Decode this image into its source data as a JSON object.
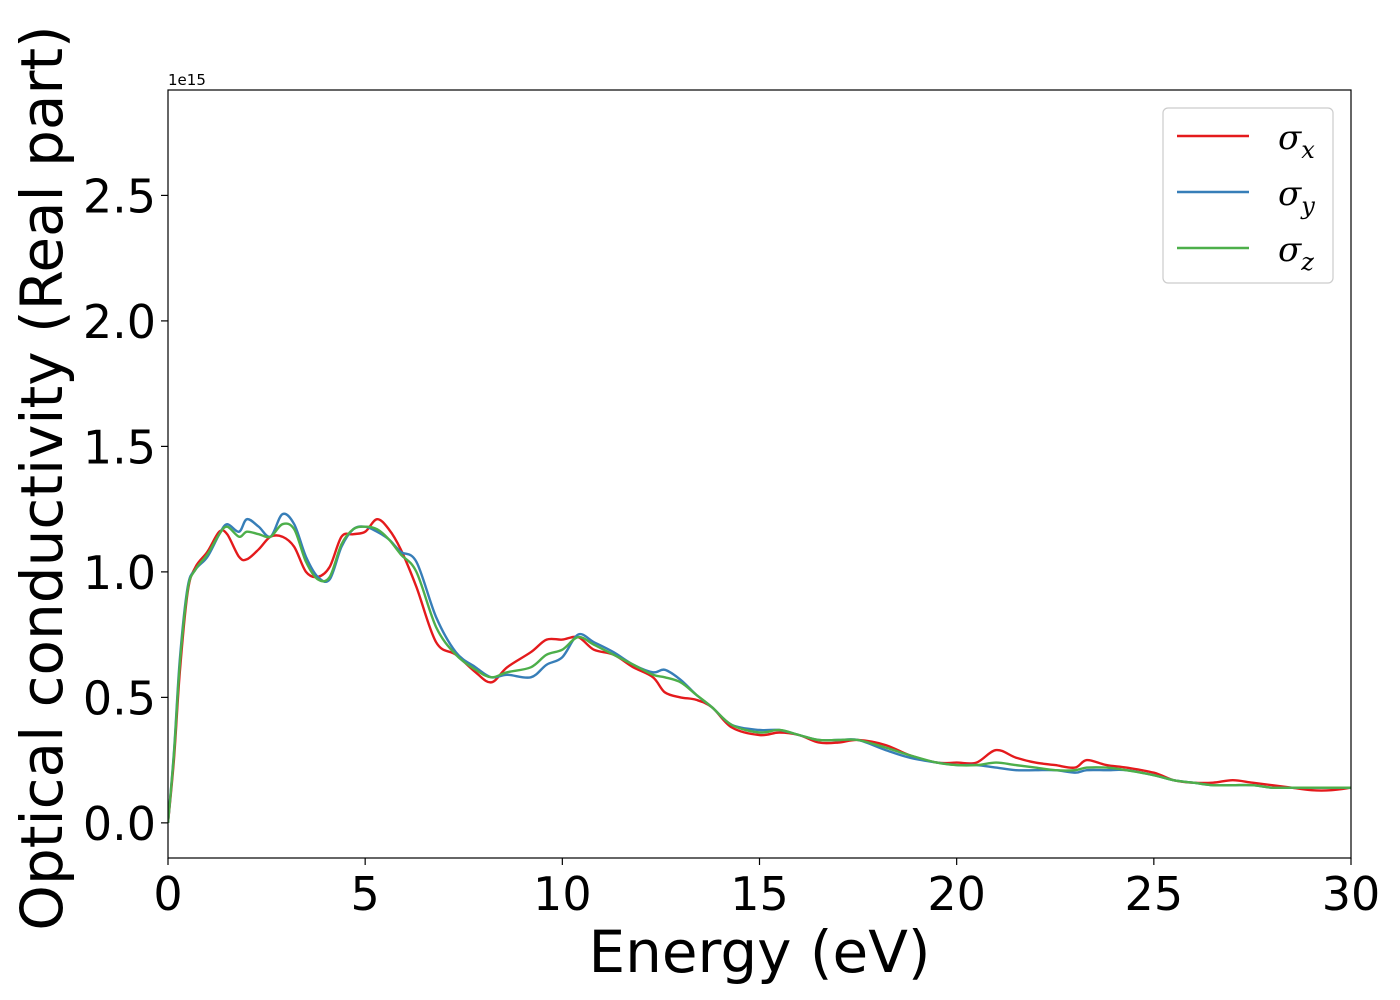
{
  "chart_data": {
    "type": "line",
    "xlabel": "Energy (eV)",
    "ylabel": "Optical conductivity (Real part)",
    "offset_text": "1e15",
    "xlim": [
      0,
      30
    ],
    "ylim": [
      -0.14,
      2.92
    ],
    "x_ticks": [
      0,
      5,
      10,
      15,
      20,
      25,
      30
    ],
    "x_tick_labels": [
      "0",
      "5",
      "10",
      "15",
      "20",
      "25",
      "30"
    ],
    "y_ticks": [
      0.0,
      0.5,
      1.0,
      1.5,
      2.0,
      2.5
    ],
    "y_tick_labels": [
      "0.0",
      "0.5",
      "1.0",
      "1.5",
      "2.0",
      "2.5"
    ],
    "y_scale_factor": 1000000000000000.0,
    "grid": false,
    "legend_position": "top-right",
    "series": [
      {
        "name": "σx",
        "legend_symbol": "σ",
        "legend_subscript": "x",
        "color": "#e41a1c",
        "points": [
          [
            0,
            0.0
          ],
          [
            0.15,
            0.25
          ],
          [
            0.3,
            0.6
          ],
          [
            0.5,
            0.92
          ],
          [
            0.7,
            1.02
          ],
          [
            1.0,
            1.08
          ],
          [
            1.3,
            1.16
          ],
          [
            1.5,
            1.15
          ],
          [
            1.8,
            1.06
          ],
          [
            2.0,
            1.05
          ],
          [
            2.3,
            1.09
          ],
          [
            2.6,
            1.14
          ],
          [
            2.9,
            1.14
          ],
          [
            3.2,
            1.1
          ],
          [
            3.5,
            1.0
          ],
          [
            3.8,
            0.98
          ],
          [
            4.1,
            1.02
          ],
          [
            4.4,
            1.14
          ],
          [
            4.7,
            1.15
          ],
          [
            5.0,
            1.16
          ],
          [
            5.3,
            1.21
          ],
          [
            5.6,
            1.17
          ],
          [
            5.9,
            1.09
          ],
          [
            6.3,
            0.94
          ],
          [
            6.8,
            0.72
          ],
          [
            7.3,
            0.67
          ],
          [
            7.8,
            0.6
          ],
          [
            8.2,
            0.56
          ],
          [
            8.6,
            0.62
          ],
          [
            9.2,
            0.68
          ],
          [
            9.6,
            0.73
          ],
          [
            10.0,
            0.73
          ],
          [
            10.4,
            0.74
          ],
          [
            10.8,
            0.69
          ],
          [
            11.3,
            0.67
          ],
          [
            11.8,
            0.62
          ],
          [
            12.3,
            0.58
          ],
          [
            12.6,
            0.52
          ],
          [
            13.0,
            0.5
          ],
          [
            13.4,
            0.49
          ],
          [
            13.8,
            0.46
          ],
          [
            14.3,
            0.38
          ],
          [
            15.0,
            0.35
          ],
          [
            15.5,
            0.36
          ],
          [
            16.0,
            0.35
          ],
          [
            16.5,
            0.32
          ],
          [
            17.0,
            0.32
          ],
          [
            17.5,
            0.33
          ],
          [
            18.2,
            0.31
          ],
          [
            18.8,
            0.27
          ],
          [
            19.5,
            0.24
          ],
          [
            20.0,
            0.24
          ],
          [
            20.5,
            0.24
          ],
          [
            21.0,
            0.29
          ],
          [
            21.5,
            0.26
          ],
          [
            22.0,
            0.24
          ],
          [
            22.5,
            0.23
          ],
          [
            23.0,
            0.22
          ],
          [
            23.3,
            0.25
          ],
          [
            23.8,
            0.23
          ],
          [
            24.3,
            0.22
          ],
          [
            25.0,
            0.2
          ],
          [
            25.5,
            0.17
          ],
          [
            26.0,
            0.16
          ],
          [
            26.5,
            0.16
          ],
          [
            27.0,
            0.17
          ],
          [
            27.5,
            0.16
          ],
          [
            28.0,
            0.15
          ],
          [
            28.5,
            0.14
          ],
          [
            29.0,
            0.13
          ],
          [
            29.5,
            0.13
          ],
          [
            30.0,
            0.14
          ]
        ]
      },
      {
        "name": "σy",
        "legend_symbol": "σ",
        "legend_subscript": "y",
        "color": "#377eb8",
        "points": [
          [
            0,
            0.0
          ],
          [
            0.15,
            0.28
          ],
          [
            0.3,
            0.65
          ],
          [
            0.5,
            0.94
          ],
          [
            0.7,
            1.01
          ],
          [
            1.0,
            1.06
          ],
          [
            1.3,
            1.15
          ],
          [
            1.5,
            1.19
          ],
          [
            1.8,
            1.16
          ],
          [
            2.0,
            1.21
          ],
          [
            2.3,
            1.18
          ],
          [
            2.6,
            1.14
          ],
          [
            2.9,
            1.23
          ],
          [
            3.2,
            1.19
          ],
          [
            3.5,
            1.06
          ],
          [
            3.8,
            0.98
          ],
          [
            4.1,
            0.97
          ],
          [
            4.4,
            1.1
          ],
          [
            4.7,
            1.17
          ],
          [
            5.0,
            1.18
          ],
          [
            5.3,
            1.16
          ],
          [
            5.6,
            1.13
          ],
          [
            5.9,
            1.08
          ],
          [
            6.3,
            1.04
          ],
          [
            6.8,
            0.82
          ],
          [
            7.3,
            0.68
          ],
          [
            7.8,
            0.62
          ],
          [
            8.2,
            0.58
          ],
          [
            8.6,
            0.59
          ],
          [
            9.2,
            0.58
          ],
          [
            9.6,
            0.63
          ],
          [
            10.0,
            0.66
          ],
          [
            10.4,
            0.75
          ],
          [
            10.8,
            0.72
          ],
          [
            11.3,
            0.68
          ],
          [
            11.8,
            0.63
          ],
          [
            12.3,
            0.6
          ],
          [
            12.6,
            0.61
          ],
          [
            13.0,
            0.57
          ],
          [
            13.4,
            0.51
          ],
          [
            13.8,
            0.46
          ],
          [
            14.3,
            0.39
          ],
          [
            15.0,
            0.37
          ],
          [
            15.5,
            0.37
          ],
          [
            16.0,
            0.35
          ],
          [
            16.5,
            0.33
          ],
          [
            17.0,
            0.33
          ],
          [
            17.5,
            0.33
          ],
          [
            18.2,
            0.29
          ],
          [
            18.8,
            0.26
          ],
          [
            19.5,
            0.24
          ],
          [
            20.0,
            0.23
          ],
          [
            20.5,
            0.23
          ],
          [
            21.0,
            0.22
          ],
          [
            21.5,
            0.21
          ],
          [
            22.0,
            0.21
          ],
          [
            22.5,
            0.21
          ],
          [
            23.0,
            0.2
          ],
          [
            23.3,
            0.21
          ],
          [
            23.8,
            0.21
          ],
          [
            24.3,
            0.21
          ],
          [
            25.0,
            0.19
          ],
          [
            25.5,
            0.17
          ],
          [
            26.0,
            0.16
          ],
          [
            26.5,
            0.15
          ],
          [
            27.0,
            0.15
          ],
          [
            27.5,
            0.15
          ],
          [
            28.0,
            0.14
          ],
          [
            28.5,
            0.14
          ],
          [
            29.0,
            0.14
          ],
          [
            29.5,
            0.14
          ],
          [
            30.0,
            0.14
          ]
        ]
      },
      {
        "name": "σz",
        "legend_symbol": "σ",
        "legend_subscript": "z",
        "color": "#4daf4a",
        "points": [
          [
            0,
            0.0
          ],
          [
            0.15,
            0.27
          ],
          [
            0.3,
            0.63
          ],
          [
            0.5,
            0.93
          ],
          [
            0.7,
            1.01
          ],
          [
            1.0,
            1.07
          ],
          [
            1.3,
            1.15
          ],
          [
            1.5,
            1.18
          ],
          [
            1.8,
            1.14
          ],
          [
            2.0,
            1.16
          ],
          [
            2.3,
            1.15
          ],
          [
            2.6,
            1.14
          ],
          [
            2.9,
            1.19
          ],
          [
            3.2,
            1.17
          ],
          [
            3.5,
            1.04
          ],
          [
            3.8,
            0.97
          ],
          [
            4.1,
            0.98
          ],
          [
            4.4,
            1.11
          ],
          [
            4.7,
            1.17
          ],
          [
            5.0,
            1.18
          ],
          [
            5.3,
            1.17
          ],
          [
            5.6,
            1.13
          ],
          [
            5.9,
            1.07
          ],
          [
            6.3,
            1.0
          ],
          [
            6.8,
            0.78
          ],
          [
            7.3,
            0.67
          ],
          [
            7.8,
            0.61
          ],
          [
            8.2,
            0.58
          ],
          [
            8.6,
            0.6
          ],
          [
            9.2,
            0.62
          ],
          [
            9.6,
            0.67
          ],
          [
            10.0,
            0.69
          ],
          [
            10.4,
            0.74
          ],
          [
            10.8,
            0.71
          ],
          [
            11.3,
            0.67
          ],
          [
            11.8,
            0.63
          ],
          [
            12.3,
            0.59
          ],
          [
            12.6,
            0.58
          ],
          [
            13.0,
            0.56
          ],
          [
            13.4,
            0.51
          ],
          [
            13.8,
            0.46
          ],
          [
            14.3,
            0.39
          ],
          [
            15.0,
            0.36
          ],
          [
            15.5,
            0.37
          ],
          [
            16.0,
            0.35
          ],
          [
            16.5,
            0.33
          ],
          [
            17.0,
            0.33
          ],
          [
            17.5,
            0.33
          ],
          [
            18.2,
            0.3
          ],
          [
            18.8,
            0.27
          ],
          [
            19.5,
            0.24
          ],
          [
            20.0,
            0.23
          ],
          [
            20.5,
            0.23
          ],
          [
            21.0,
            0.24
          ],
          [
            21.5,
            0.23
          ],
          [
            22.0,
            0.22
          ],
          [
            22.5,
            0.21
          ],
          [
            23.0,
            0.21
          ],
          [
            23.3,
            0.22
          ],
          [
            23.8,
            0.22
          ],
          [
            24.3,
            0.21
          ],
          [
            25.0,
            0.19
          ],
          [
            25.5,
            0.17
          ],
          [
            26.0,
            0.16
          ],
          [
            26.5,
            0.15
          ],
          [
            27.0,
            0.15
          ],
          [
            27.5,
            0.15
          ],
          [
            28.0,
            0.14
          ],
          [
            28.5,
            0.14
          ],
          [
            29.0,
            0.14
          ],
          [
            29.5,
            0.14
          ],
          [
            30.0,
            0.14
          ]
        ]
      }
    ]
  }
}
